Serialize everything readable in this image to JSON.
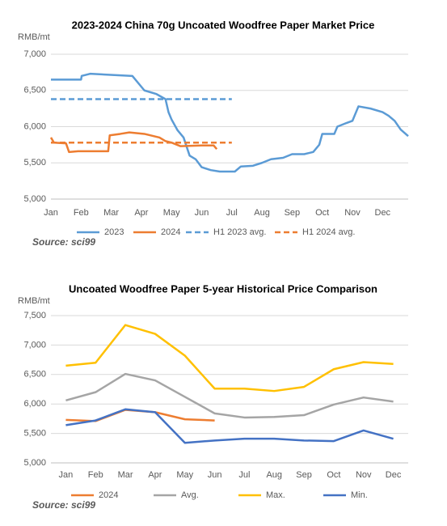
{
  "chart_data": [
    {
      "type": "line",
      "title": "2023-2024 China 70g Uncoated Woodfree Paper Market Price",
      "y_label": "RMB/mt",
      "source": "Source: sci99",
      "xlim": [
        1,
        12.85
      ],
      "xticks": [
        {
          "value": 1,
          "label": "Jan"
        },
        {
          "value": 2,
          "label": "Feb"
        },
        {
          "value": 3,
          "label": "Mar"
        },
        {
          "value": 4,
          "label": "Apr"
        },
        {
          "value": 5,
          "label": "May"
        },
        {
          "value": 6,
          "label": "Jun"
        },
        {
          "value": 7,
          "label": "Jul"
        },
        {
          "value": 8,
          "label": "Aug"
        },
        {
          "value": 9,
          "label": "Sep"
        },
        {
          "value": 10,
          "label": "Oct"
        },
        {
          "value": 11,
          "label": "Nov"
        },
        {
          "value": 12,
          "label": "Dec"
        }
      ],
      "ylim": [
        5000,
        7000
      ],
      "yticks": [
        {
          "value": 5000,
          "label": "5,000"
        },
        {
          "value": 5500,
          "label": "5,500"
        },
        {
          "value": 6000,
          "label": "6,000"
        },
        {
          "value": 6500,
          "label": "6,500"
        },
        {
          "value": 7000,
          "label": "7,000"
        }
      ],
      "grid": true,
      "series": [
        {
          "name": "2023",
          "color": "#5b9bd5",
          "dash": false,
          "x": [
            1,
            2,
            2.02,
            2.3,
            3.7,
            4.1,
            4.5,
            4.8,
            4.9,
            5.0,
            5.2,
            5.4,
            5.6,
            5.8,
            6,
            6.3,
            6.6,
            7.1,
            7.3,
            7.7,
            8,
            8.3,
            8.7,
            9,
            9.4,
            9.7,
            9.9,
            10,
            10.4,
            10.5,
            10.8,
            11.0,
            11.2,
            11.6,
            12,
            12.2,
            12.4,
            12.6,
            12.85
          ],
          "values": [
            6650,
            6650,
            6700,
            6730,
            6700,
            6500,
            6450,
            6380,
            6200,
            6100,
            5950,
            5850,
            5600,
            5550,
            5440,
            5400,
            5380,
            5380,
            5450,
            5460,
            5500,
            5550,
            5570,
            5620,
            5620,
            5650,
            5750,
            5900,
            5900,
            6000,
            6050,
            6080,
            6280,
            6250,
            6200,
            6150,
            6080,
            5960,
            5870
          ]
        },
        {
          "name": "2024",
          "color": "#ed7d31",
          "dash": false,
          "x": [
            1,
            1.1,
            1.5,
            1.6,
            1.9,
            2.9,
            2.95,
            3.3,
            3.6,
            4.1,
            4.6,
            4.8,
            5,
            5.3,
            6,
            6.4,
            6.5
          ],
          "values": [
            5850,
            5780,
            5770,
            5650,
            5660,
            5660,
            5880,
            5900,
            5920,
            5900,
            5850,
            5800,
            5780,
            5730,
            5740,
            5740,
            5690
          ]
        },
        {
          "name": "H1 2023 avg.",
          "color": "#5b9bd5",
          "dash": true,
          "x": [
            1,
            7
          ],
          "values": [
            6380,
            6380
          ]
        },
        {
          "name": "H1 2024 avg.",
          "color": "#ed7d31",
          "dash": true,
          "x": [
            1,
            7
          ],
          "values": [
            5780,
            5780
          ]
        }
      ]
    },
    {
      "type": "line",
      "title": "Uncoated Woodfree Paper 5-year Historical Price Comparison",
      "y_label": "RMB/mt",
      "source": "Source: sci99",
      "categories": [
        "Jan",
        "Feb",
        "Mar",
        "Apr",
        "May",
        "Jun",
        "Jul",
        "Aug",
        "Sep",
        "Oct",
        "Nov",
        "Dec"
      ],
      "ylim": [
        5000,
        7500
      ],
      "yticks": [
        {
          "value": 5000,
          "label": "5,000"
        },
        {
          "value": 5500,
          "label": "5,500"
        },
        {
          "value": 6000,
          "label": "6,000"
        },
        {
          "value": 6500,
          "label": "6,500"
        },
        {
          "value": 7000,
          "label": "7,000"
        },
        {
          "value": 7500,
          "label": "7,500"
        }
      ],
      "grid": true,
      "series": [
        {
          "name": "2024",
          "color": "#ed7d31",
          "values": [
            5730,
            5710,
            5900,
            5860,
            5740,
            5720,
            null,
            null,
            null,
            null,
            null,
            null
          ]
        },
        {
          "name": "Avg.",
          "color": "#a5a5a5",
          "values": [
            6060,
            6200,
            6510,
            6400,
            6120,
            5840,
            5770,
            5780,
            5810,
            5990,
            6110,
            6040
          ]
        },
        {
          "name": "Max.",
          "color": "#ffc000",
          "values": [
            6650,
            6700,
            7340,
            7190,
            6820,
            6260,
            6260,
            6220,
            6290,
            6590,
            6710,
            6680
          ]
        },
        {
          "name": "Min.",
          "color": "#4472c4",
          "values": [
            5640,
            5720,
            5910,
            5860,
            5340,
            5380,
            5410,
            5410,
            5380,
            5370,
            5550,
            5410
          ]
        }
      ]
    }
  ]
}
